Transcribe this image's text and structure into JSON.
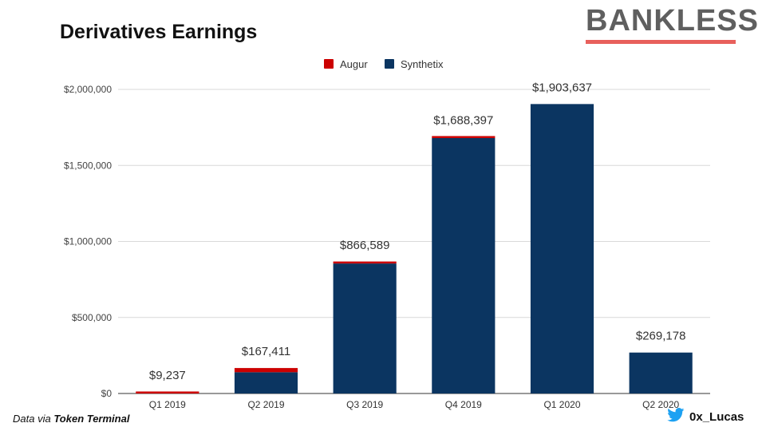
{
  "title": "Derivatives Earnings",
  "brand": {
    "name": "BANKLESS",
    "accent_color": "#e8605c"
  },
  "source": {
    "prefix": "Data via",
    "name": "Token Terminal"
  },
  "author": {
    "handle": "0x_Lucas",
    "icon": "twitter-bird-icon",
    "icon_color": "#1da1f2"
  },
  "chart_data": {
    "type": "bar",
    "stacked": true,
    "title": "Derivatives Earnings",
    "categories": [
      "Q1 2019",
      "Q2 2019",
      "Q3 2019",
      "Q4 2019",
      "Q1 2020",
      "Q2 2020"
    ],
    "series": [
      {
        "name": "Augur",
        "color": "#cc0000",
        "values": [
          9237,
          27411,
          11589,
          8397,
          0,
          0
        ]
      },
      {
        "name": "Synthetix",
        "color": "#0b3561",
        "values": [
          0,
          140000,
          855000,
          1680000,
          1903637,
          269178
        ]
      }
    ],
    "totals": [
      9237,
      167411,
      866589,
      1688397,
      1903637,
      269178
    ],
    "total_labels": [
      "$9,237",
      "$167,411",
      "$866,589",
      "$1,688,397",
      "$1,903,637",
      "$269,178"
    ],
    "yticks": [
      0,
      500000,
      1000000,
      1500000,
      2000000
    ],
    "ytick_labels": [
      "$0",
      "$500,000",
      "$1,000,000",
      "$1,500,000",
      "$2,000,000"
    ],
    "ylim": [
      0,
      2000000
    ],
    "xlabel": "",
    "ylabel": "",
    "grid": true,
    "legend_position": "top-center"
  }
}
